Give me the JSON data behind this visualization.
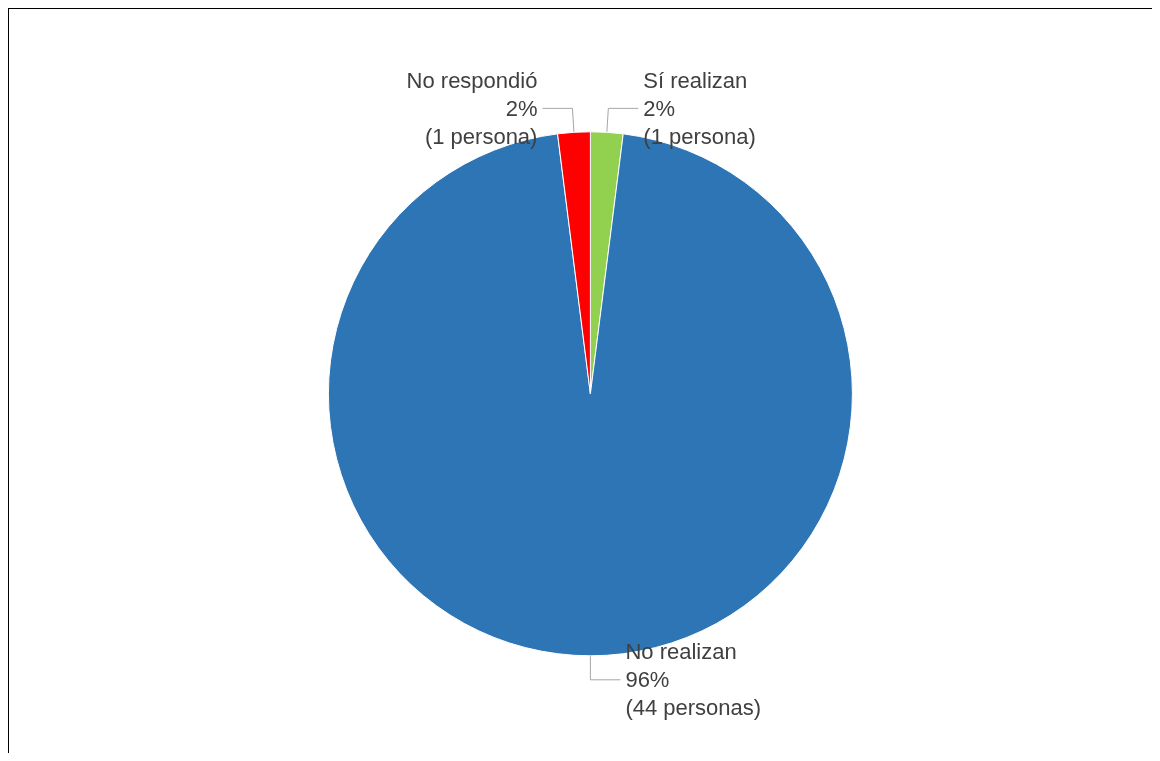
{
  "chart_data": {
    "type": "pie",
    "categories": [
      "Sí realizan",
      "No realizan",
      "No respondió"
    ],
    "values": [
      2,
      96,
      2
    ],
    "colors": [
      "#92d050",
      "#2e75b6",
      "#ff0000"
    ],
    "value_labels": [
      "2%\n(1 persona)",
      "96%\n(44 personas)",
      "2%\n(1 persona)"
    ]
  }
}
